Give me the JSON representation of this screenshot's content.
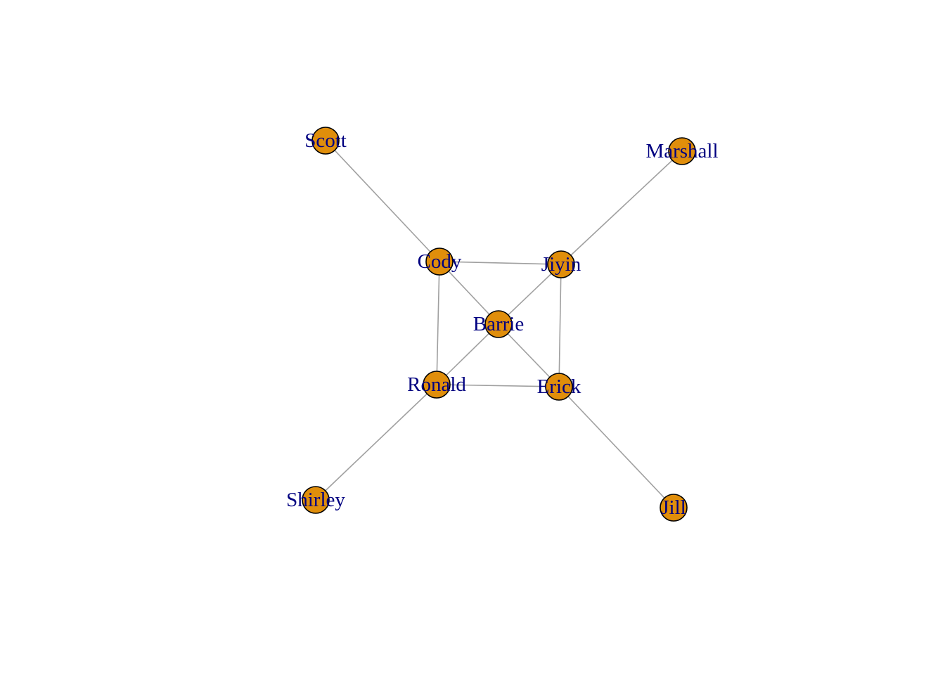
{
  "graph": {
    "colors": {
      "node_fill": "#e08e0b",
      "node_stroke": "#000000",
      "edge": "#a0a0a0",
      "label": "#000080",
      "background": "#ffffff"
    },
    "nodes": [
      {
        "id": "scott",
        "label": "Scott"
      },
      {
        "id": "marshall",
        "label": "Marshall"
      },
      {
        "id": "cody",
        "label": "Cody"
      },
      {
        "id": "jiyin",
        "label": "Jiyin"
      },
      {
        "id": "barrie",
        "label": "Barrie"
      },
      {
        "id": "ronald",
        "label": "Ronald"
      },
      {
        "id": "erick",
        "label": "Erick"
      },
      {
        "id": "shirley",
        "label": "Shirley"
      },
      {
        "id": "jill",
        "label": "Jill"
      }
    ],
    "edges": [
      {
        "from": "scott",
        "to": "cody"
      },
      {
        "from": "marshall",
        "to": "jiyin"
      },
      {
        "from": "cody",
        "to": "jiyin"
      },
      {
        "from": "cody",
        "to": "barrie"
      },
      {
        "from": "cody",
        "to": "ronald"
      },
      {
        "from": "jiyin",
        "to": "barrie"
      },
      {
        "from": "jiyin",
        "to": "erick"
      },
      {
        "from": "barrie",
        "to": "ronald"
      },
      {
        "from": "barrie",
        "to": "erick"
      },
      {
        "from": "ronald",
        "to": "erick"
      },
      {
        "from": "ronald",
        "to": "shirley"
      },
      {
        "from": "erick",
        "to": "jill"
      }
    ]
  }
}
